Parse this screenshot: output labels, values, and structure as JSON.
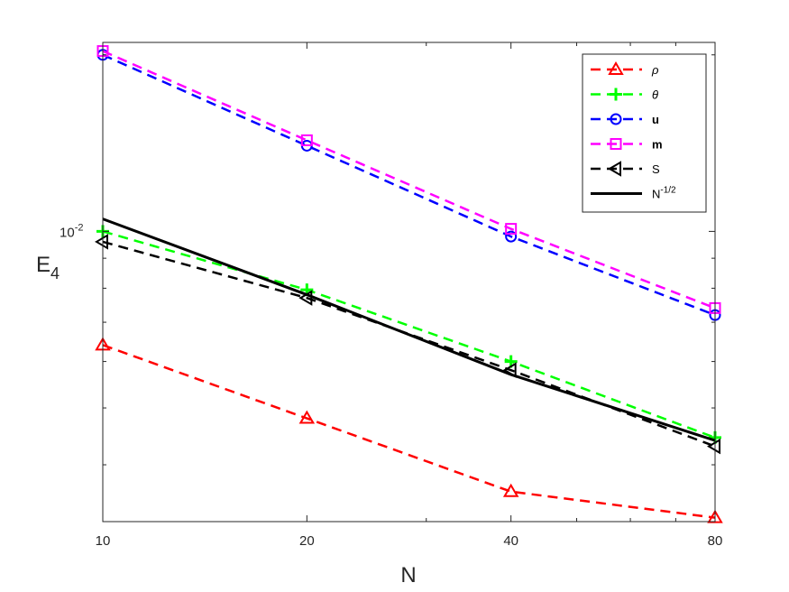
{
  "chart_data": {
    "type": "line",
    "xscale": "log",
    "yscale": "log",
    "x": [
      10,
      20,
      40,
      80
    ],
    "xlim": [
      10,
      80
    ],
    "ylim": [
      0.0032,
      0.021
    ],
    "xlabel": "N",
    "ylabel": "E",
    "ylabel_sub": "4",
    "x_ticks": [
      "10",
      "20",
      "40",
      "80"
    ],
    "y_tick_label": {
      "base": "10",
      "exp": "-2",
      "value": 0.01
    },
    "grid": false,
    "legend_position": "top-right",
    "series": [
      {
        "name": "ρ",
        "style": "dashed",
        "marker": "triangle-up",
        "color": "#ff0000",
        "values": [
          0.0064,
          0.0048,
          0.0036,
          0.00325
        ]
      },
      {
        "name": "θ",
        "style": "dashed",
        "marker": "plus",
        "color": "#00ff00",
        "values": [
          0.01,
          0.00795,
          0.006,
          0.00445
        ]
      },
      {
        "name": "u",
        "style": "dashed",
        "marker": "circle",
        "color": "#0000ff",
        "values": [
          0.02,
          0.014,
          0.0098,
          0.0072
        ]
      },
      {
        "name": "m",
        "style": "dashed",
        "marker": "square",
        "color": "#ff00ff",
        "values": [
          0.0203,
          0.0143,
          0.0101,
          0.0074
        ]
      },
      {
        "name": "S",
        "style": "dashed",
        "marker": "triangle-left",
        "color": "#000000",
        "values": [
          0.0096,
          0.0077,
          0.0058,
          0.0043
        ]
      },
      {
        "name": "N",
        "name_sup": "-1/2",
        "style": "solid",
        "marker": "none",
        "color": "#000000",
        "values": [
          0.0105,
          0.0078,
          0.0057,
          0.0044
        ]
      }
    ]
  }
}
